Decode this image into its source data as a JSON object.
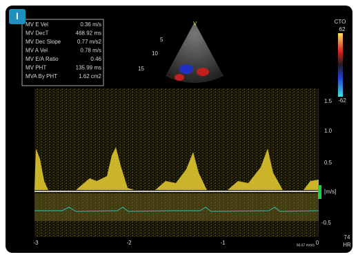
{
  "panel_label": "I",
  "measurements": [
    {
      "name": "MV E Vel",
      "value": "0.36 m/s"
    },
    {
      "name": "MV DecT",
      "value": "468.92 ms"
    },
    {
      "name": "MV Dec Slope",
      "value": "0.77 m/s2"
    },
    {
      "name": "MV A Vel",
      "value": "0.78 m/s"
    },
    {
      "name": "MV E/A Ratio",
      "value": "0.46"
    },
    {
      "name": "MV PHT",
      "value": "135.99 ms"
    },
    {
      "name": "MVA By PHT",
      "value": "1.62 cm2"
    }
  ],
  "color_bar": {
    "title": "CTO",
    "top": "62",
    "bottom": "-62"
  },
  "sector": {
    "marker": "V",
    "depths": [
      "5",
      "10",
      "15"
    ]
  },
  "velocity_axis": {
    "ticks": [
      "1.5",
      "1.0",
      "0.5",
      "-0.5"
    ],
    "unit": "[m/s]"
  },
  "time_axis": {
    "ticks": [
      "-3",
      "-2",
      "-1",
      "0"
    ],
    "sweep": "66.67 mm/s"
  },
  "heart_rate": {
    "value": "74",
    "unit": "HR"
  }
}
